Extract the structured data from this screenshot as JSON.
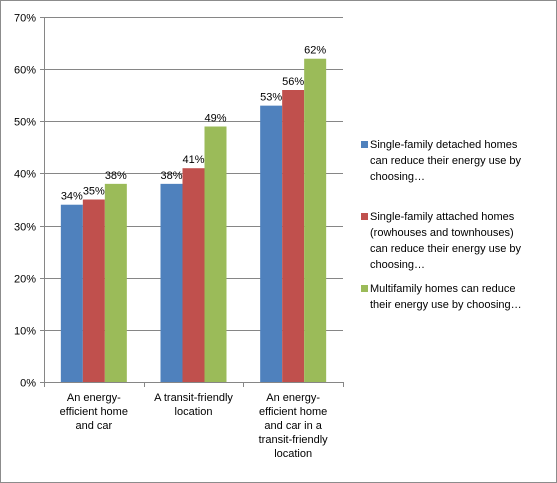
{
  "chart_data": {
    "type": "bar",
    "categories": [
      "An energy-efficient home and car",
      "A transit-friendly location",
      "An energy-efficient home and car in a transit-friendly location"
    ],
    "category_lines": [
      [
        "An energy-",
        "efficient home",
        "and car"
      ],
      [
        "A transit-friendly",
        "location"
      ],
      [
        "An energy-",
        "efficient home",
        "and car in a",
        "transit-friendly",
        "location"
      ]
    ],
    "series": [
      {
        "name": "Single-family detached homes can reduce their energy use by choosing…",
        "name_lines": [
          "Single-family detached homes",
          "can reduce their energy use by",
          "choosing…"
        ],
        "color": "#4f81bd",
        "values": [
          34,
          38,
          53
        ],
        "labels": [
          "34%",
          "38%",
          "53%"
        ]
      },
      {
        "name": "Single-family attached homes (rowhouses and townhouses) can reduce their energy use by choosing…",
        "name_lines": [
          "Single-family attached homes",
          "(rowhouses and townhouses)",
          "can reduce their energy use by",
          "choosing…"
        ],
        "color": "#c0504d",
        "values": [
          35,
          41,
          56
        ],
        "labels": [
          "35%",
          "41%",
          "56%"
        ]
      },
      {
        "name": "Multifamily homes can reduce their energy use by choosing…",
        "name_lines": [
          "Multifamily homes can reduce",
          "their energy use by choosing…"
        ],
        "color": "#9bbb59",
        "values": [
          38,
          49,
          62
        ],
        "labels": [
          "38%",
          "49%",
          "62%"
        ]
      }
    ],
    "ylim": [
      0,
      70
    ],
    "yticks": [
      0,
      10,
      20,
      30,
      40,
      50,
      60,
      70
    ],
    "ytick_labels": [
      "0%",
      "10%",
      "20%",
      "30%",
      "40%",
      "50%",
      "60%",
      "70%"
    ],
    "grid": true,
    "legend_position": "right",
    "gridline_color": "#868686",
    "axis_color": "#868686"
  }
}
